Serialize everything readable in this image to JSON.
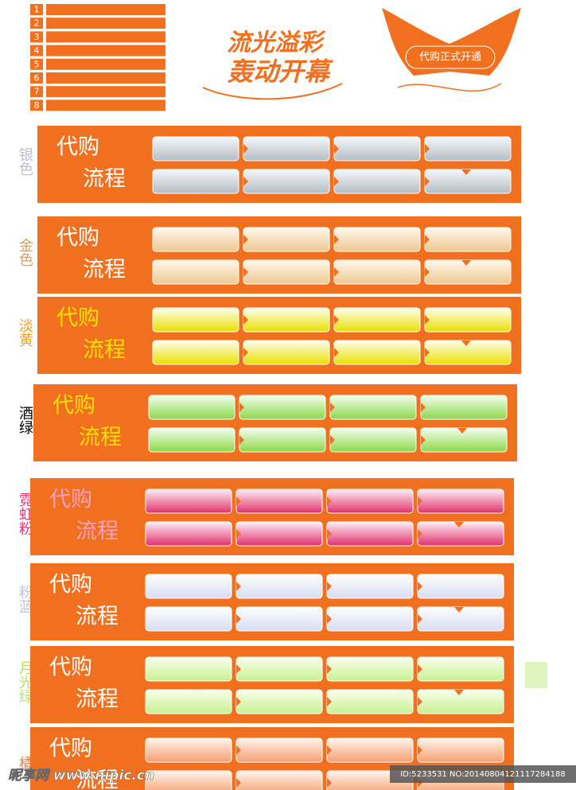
{
  "list": {
    "numbers": [
      1,
      2,
      3,
      4,
      5,
      6,
      7,
      8
    ]
  },
  "header": {
    "title_line1": "流光溢彩",
    "title_line2": "轰动开幕",
    "badge": "代购正式开通"
  },
  "panels": [
    {
      "label": "银色",
      "line1": "代购",
      "line2": "流程",
      "gradient": [
        "#f6f8fa",
        "#b4bcc4"
      ]
    },
    {
      "label": "金色",
      "line1": "代购",
      "line2": "流程",
      "gradient": [
        "#fff8ec",
        "#ecc890"
      ]
    },
    {
      "label": "淡黄",
      "line1": "代购",
      "line2": "流程",
      "gradient": [
        "#fffff0",
        "#e8e000"
      ]
    },
    {
      "label": "酒绿",
      "line1": "代购",
      "line2": "流程",
      "gradient": [
        "#f4fff0",
        "#8cd848"
      ]
    },
    {
      "label": "霓虹粉",
      "line1": "代购",
      "line2": "流程",
      "gradient": [
        "#fff0f6",
        "#e0306c"
      ]
    },
    {
      "label": "粉蓝",
      "line1": "代购",
      "line2": "流程",
      "gradient": [
        "#ffffff",
        "#d8dcf0"
      ]
    },
    {
      "label": "月光绿",
      "line1": "代购",
      "line2": "流程",
      "gradient": [
        "#fafff0",
        "#c8f090"
      ]
    },
    {
      "label": "橘",
      "line1": "代购",
      "line2": "流程",
      "gradient": [
        "#fff4ec",
        "#f4a070"
      ]
    }
  ],
  "watermark": {
    "site": "昵享网 www.nipic.cn",
    "id": "ID:5233531 NO:20140804121117284188"
  }
}
